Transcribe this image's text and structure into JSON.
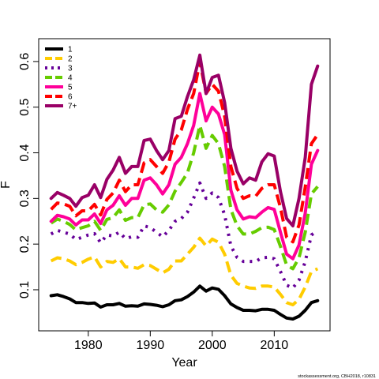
{
  "chart_data": {
    "type": "line",
    "xlabel": "Year",
    "ylabel": "F",
    "xlim": [
      1972,
      2019
    ],
    "ylim": [
      0.01,
      0.65
    ],
    "x_ticks": [
      1980,
      1990,
      2000,
      2010
    ],
    "y_ticks": [
      0.1,
      0.2,
      0.3,
      0.4,
      0.5,
      0.6
    ],
    "x_tick_labels": [
      "1980",
      "1990",
      "2000",
      "2010"
    ],
    "y_tick_labels": [
      "0.1",
      "0.2",
      "0.3",
      "0.4",
      "0.5",
      "0.6"
    ],
    "legend_position": "top-left",
    "footer": "stockassessment.org, CBH2018, r10831",
    "x": [
      1974,
      1975,
      1976,
      1977,
      1978,
      1979,
      1980,
      1981,
      1982,
      1983,
      1984,
      1985,
      1986,
      1987,
      1988,
      1989,
      1990,
      1991,
      1992,
      1993,
      1994,
      1995,
      1996,
      1997,
      1998,
      1999,
      2000,
      2001,
      2002,
      2003,
      2004,
      2005,
      2006,
      2007,
      2008,
      2009,
      2010,
      2011,
      2012,
      2013,
      2014,
      2015,
      2016,
      2017
    ],
    "series": [
      {
        "name": "1",
        "color": "#000000",
        "dash": "solid",
        "values": [
          0.087,
          0.089,
          0.085,
          0.08,
          0.072,
          0.072,
          0.07,
          0.071,
          0.062,
          0.067,
          0.067,
          0.07,
          0.064,
          0.065,
          0.064,
          0.069,
          0.068,
          0.066,
          0.063,
          0.067,
          0.076,
          0.078,
          0.085,
          0.095,
          0.108,
          0.097,
          0.104,
          0.101,
          0.087,
          0.069,
          0.061,
          0.055,
          0.055,
          0.054,
          0.057,
          0.057,
          0.055,
          0.046,
          0.038,
          0.036,
          0.042,
          0.055,
          0.072,
          0.076
        ]
      },
      {
        "name": "2",
        "color": "#FFCC00",
        "dash": "dashed",
        "values": [
          0.163,
          0.17,
          0.168,
          0.163,
          0.155,
          0.16,
          0.167,
          0.172,
          0.15,
          0.162,
          0.16,
          0.168,
          0.15,
          0.15,
          0.147,
          0.155,
          0.153,
          0.145,
          0.137,
          0.145,
          0.163,
          0.163,
          0.178,
          0.193,
          0.213,
          0.196,
          0.211,
          0.204,
          0.178,
          0.132,
          0.114,
          0.108,
          0.104,
          0.103,
          0.108,
          0.108,
          0.106,
          0.09,
          0.072,
          0.067,
          0.079,
          0.106,
          0.14,
          0.146
        ]
      },
      {
        "name": "3",
        "color": "#660099",
        "dash": "dotted",
        "values": [
          0.222,
          0.23,
          0.226,
          0.222,
          0.21,
          0.215,
          0.22,
          0.223,
          0.203,
          0.22,
          0.218,
          0.226,
          0.212,
          0.216,
          0.215,
          0.24,
          0.236,
          0.226,
          0.216,
          0.23,
          0.25,
          0.256,
          0.27,
          0.301,
          0.334,
          0.3,
          0.312,
          0.302,
          0.264,
          0.196,
          0.171,
          0.162,
          0.162,
          0.162,
          0.17,
          0.171,
          0.168,
          0.14,
          0.11,
          0.104,
          0.121,
          0.162,
          0.22,
          0.23
        ]
      },
      {
        "name": "4",
        "color": "#66CC00",
        "dash": "dashed",
        "values": [
          0.246,
          0.255,
          0.25,
          0.243,
          0.231,
          0.236,
          0.24,
          0.25,
          0.23,
          0.254,
          0.258,
          0.275,
          0.252,
          0.258,
          0.258,
          0.286,
          0.288,
          0.275,
          0.27,
          0.286,
          0.316,
          0.335,
          0.356,
          0.4,
          0.46,
          0.41,
          0.438,
          0.42,
          0.37,
          0.276,
          0.24,
          0.222,
          0.222,
          0.228,
          0.236,
          0.237,
          0.232,
          0.195,
          0.154,
          0.146,
          0.17,
          0.226,
          0.31,
          0.326
        ]
      },
      {
        "name": "5",
        "color": "#FF0099",
        "dash": "solid",
        "values": [
          0.25,
          0.263,
          0.26,
          0.255,
          0.242,
          0.253,
          0.253,
          0.266,
          0.245,
          0.275,
          0.285,
          0.306,
          0.285,
          0.3,
          0.3,
          0.34,
          0.345,
          0.33,
          0.31,
          0.33,
          0.375,
          0.39,
          0.42,
          0.46,
          0.53,
          0.47,
          0.5,
          0.485,
          0.44,
          0.318,
          0.275,
          0.255,
          0.26,
          0.258,
          0.27,
          0.28,
          0.276,
          0.226,
          0.178,
          0.168,
          0.198,
          0.268,
          0.375,
          0.405
        ]
      },
      {
        "name": "6",
        "color": "#FF0000",
        "dash": "dashed",
        "values": [
          0.276,
          0.29,
          0.288,
          0.283,
          0.262,
          0.273,
          0.273,
          0.287,
          0.264,
          0.298,
          0.312,
          0.34,
          0.315,
          0.33,
          0.33,
          0.378,
          0.385,
          0.37,
          0.355,
          0.38,
          0.43,
          0.45,
          0.495,
          0.53,
          0.6,
          0.53,
          0.55,
          0.535,
          0.48,
          0.37,
          0.322,
          0.3,
          0.306,
          0.305,
          0.322,
          0.33,
          0.33,
          0.28,
          0.215,
          0.205,
          0.242,
          0.325,
          0.42,
          0.44
        ]
      },
      {
        "name": "7+",
        "color": "#990066",
        "dash": "solid",
        "values": [
          0.3,
          0.313,
          0.307,
          0.3,
          0.283,
          0.302,
          0.307,
          0.33,
          0.302,
          0.342,
          0.362,
          0.39,
          0.355,
          0.37,
          0.37,
          0.427,
          0.43,
          0.405,
          0.385,
          0.405,
          0.475,
          0.48,
          0.523,
          0.56,
          0.614,
          0.53,
          0.565,
          0.57,
          0.51,
          0.41,
          0.36,
          0.332,
          0.345,
          0.34,
          0.38,
          0.398,
          0.393,
          0.315,
          0.256,
          0.24,
          0.3,
          0.39,
          0.55,
          0.59
        ]
      }
    ]
  }
}
